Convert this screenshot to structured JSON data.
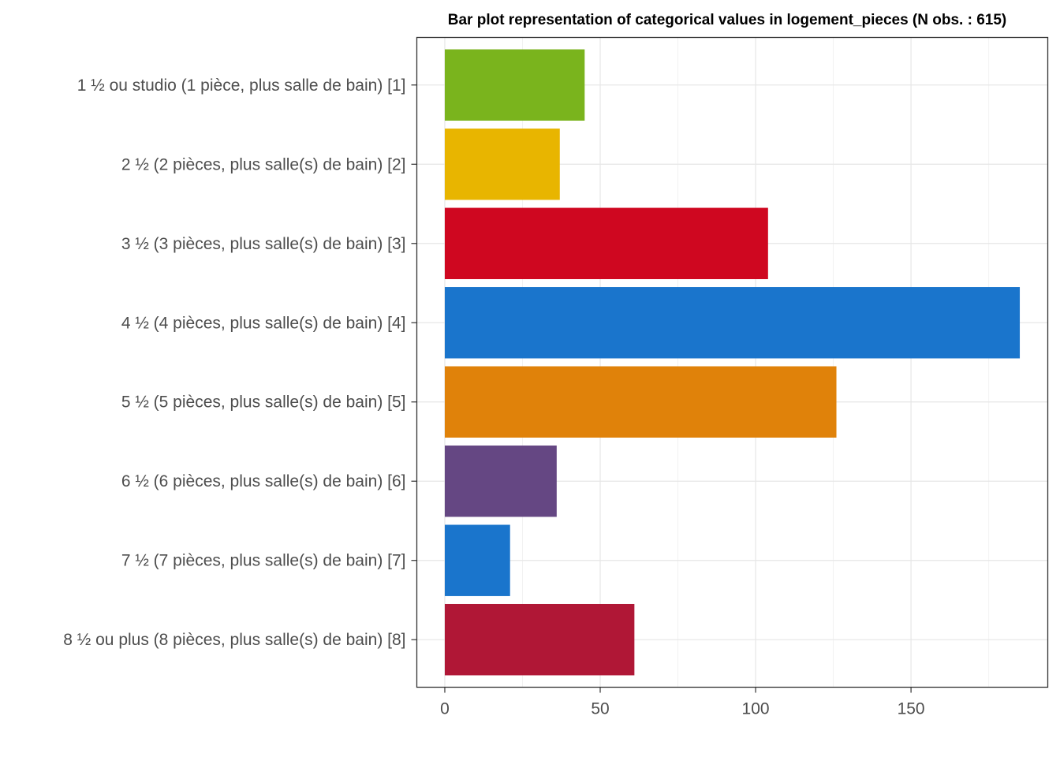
{
  "chart_data": {
    "type": "bar",
    "orientation": "horizontal",
    "title": "Bar plot representation of categorical values in logement_pieces (N obs. : 615)",
    "xlabel": "",
    "ylabel": "",
    "xlim": [
      -9,
      194
    ],
    "xticks": [
      0,
      50,
      100,
      150
    ],
    "grid": true,
    "legend": "none",
    "categories": [
      "1 ½ ou studio (1 pièce, plus salle de bain) [1]",
      "2 ½ (2 pièces, plus salle(s) de bain) [2]",
      "3 ½ (3 pièces, plus salle(s) de bain) [3]",
      "4 ½ (4 pièces, plus salle(s) de bain) [4]",
      "5 ½ (5 pièces, plus salle(s) de bain) [5]",
      "6 ½ (6 pièces, plus salle(s) de bain) [6]",
      "7 ½ (7 pièces, plus salle(s) de bain) [7]",
      "8 ½ ou plus (8 pièces, plus salle(s) de bain) [8]"
    ],
    "values": [
      45,
      37,
      104,
      185,
      126,
      36,
      21,
      61
    ],
    "colors": [
      "#7ab41d",
      "#e8b500",
      "#cf0720",
      "#1a75cc",
      "#e0820a",
      "#654783",
      "#1a75cc",
      "#b01736"
    ]
  }
}
